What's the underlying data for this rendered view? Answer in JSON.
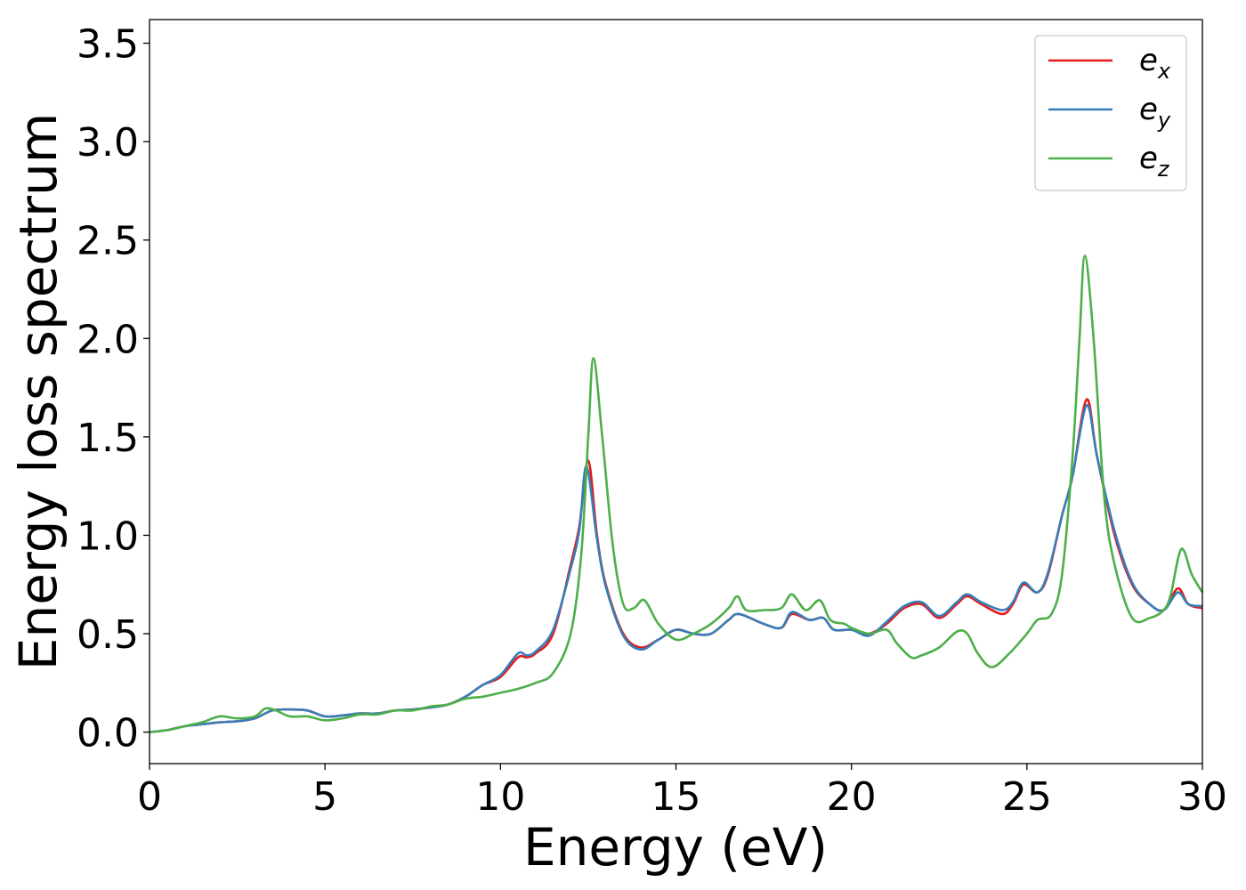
{
  "chart_data": {
    "type": "line",
    "title": "",
    "xlabel": "Energy (eV)",
    "ylabel": "Energy loss spectrum",
    "xlim": [
      0,
      30
    ],
    "ylim": [
      -0.16,
      3.62
    ],
    "xticks": [
      0,
      5,
      10,
      15,
      20,
      25,
      30
    ],
    "xtick_labels": [
      "0",
      "5",
      "10",
      "15",
      "20",
      "25",
      "30"
    ],
    "yticks": [
      0.0,
      0.5,
      1.0,
      1.5,
      2.0,
      2.5,
      3.0,
      3.5
    ],
    "ytick_labels": [
      "0.0",
      "0.5",
      "1.0",
      "1.5",
      "2.0",
      "2.5",
      "3.0",
      "3.5"
    ],
    "grid": false,
    "legend": "top-right",
    "series": [
      {
        "name": "e_x",
        "base": "e",
        "sub": "x",
        "color": "#e41a1c",
        "points": [
          [
            0,
            0
          ],
          [
            0.5,
            0.01
          ],
          [
            1,
            0.03
          ],
          [
            1.5,
            0.04
          ],
          [
            2,
            0.05
          ],
          [
            2.5,
            0.055
          ],
          [
            3,
            0.07
          ],
          [
            3.5,
            0.11
          ],
          [
            4,
            0.115
          ],
          [
            4.5,
            0.11
          ],
          [
            5,
            0.08
          ],
          [
            5.5,
            0.085
          ],
          [
            6,
            0.095
          ],
          [
            6.5,
            0.095
          ],
          [
            7,
            0.11
          ],
          [
            7.5,
            0.115
          ],
          [
            8,
            0.125
          ],
          [
            8.5,
            0.14
          ],
          [
            9,
            0.18
          ],
          [
            9.5,
            0.24
          ],
          [
            10,
            0.28
          ],
          [
            10.5,
            0.38
          ],
          [
            10.75,
            0.38
          ],
          [
            11,
            0.4
          ],
          [
            11.5,
            0.5
          ],
          [
            12,
            0.85
          ],
          [
            12.25,
            1.05
          ],
          [
            12.5,
            1.38
          ],
          [
            12.75,
            1.0
          ],
          [
            13,
            0.75
          ],
          [
            13.5,
            0.5
          ],
          [
            14,
            0.43
          ],
          [
            14.5,
            0.47
          ],
          [
            15,
            0.52
          ],
          [
            15.5,
            0.5
          ],
          [
            16,
            0.5
          ],
          [
            16.5,
            0.57
          ],
          [
            16.8,
            0.6
          ],
          [
            17.5,
            0.55
          ],
          [
            18,
            0.53
          ],
          [
            18.3,
            0.6
          ],
          [
            18.8,
            0.57
          ],
          [
            19.2,
            0.58
          ],
          [
            19.5,
            0.52
          ],
          [
            20,
            0.52
          ],
          [
            20.5,
            0.5
          ],
          [
            21,
            0.55
          ],
          [
            21.5,
            0.63
          ],
          [
            22,
            0.65
          ],
          [
            22.5,
            0.58
          ],
          [
            23,
            0.65
          ],
          [
            23.3,
            0.69
          ],
          [
            23.7,
            0.65
          ],
          [
            24.3,
            0.6
          ],
          [
            24.6,
            0.65
          ],
          [
            24.9,
            0.75
          ],
          [
            25.3,
            0.71
          ],
          [
            25.6,
            0.8
          ],
          [
            26,
            1.1
          ],
          [
            26.3,
            1.3
          ],
          [
            26.7,
            1.69
          ],
          [
            27,
            1.4
          ],
          [
            27.5,
            1.0
          ],
          [
            28,
            0.75
          ],
          [
            28.5,
            0.65
          ],
          [
            28.9,
            0.62
          ],
          [
            29.3,
            0.73
          ],
          [
            29.6,
            0.65
          ],
          [
            30,
            0.63
          ]
        ]
      },
      {
        "name": "e_y",
        "base": "e",
        "sub": "y",
        "color": "#377eb8",
        "points": [
          [
            0,
            0
          ],
          [
            0.5,
            0.01
          ],
          [
            1,
            0.03
          ],
          [
            1.5,
            0.04
          ],
          [
            2,
            0.05
          ],
          [
            2.5,
            0.055
          ],
          [
            3,
            0.07
          ],
          [
            3.5,
            0.11
          ],
          [
            4,
            0.115
          ],
          [
            4.5,
            0.11
          ],
          [
            5,
            0.08
          ],
          [
            5.5,
            0.085
          ],
          [
            6,
            0.095
          ],
          [
            6.5,
            0.095
          ],
          [
            7,
            0.11
          ],
          [
            7.5,
            0.115
          ],
          [
            8,
            0.125
          ],
          [
            8.5,
            0.14
          ],
          [
            9,
            0.18
          ],
          [
            9.5,
            0.24
          ],
          [
            10,
            0.29
          ],
          [
            10.5,
            0.4
          ],
          [
            10.75,
            0.39
          ],
          [
            11,
            0.41
          ],
          [
            11.5,
            0.52
          ],
          [
            12,
            0.83
          ],
          [
            12.25,
            1.03
          ],
          [
            12.45,
            1.35
          ],
          [
            12.75,
            0.98
          ],
          [
            13,
            0.74
          ],
          [
            13.5,
            0.49
          ],
          [
            14,
            0.42
          ],
          [
            14.5,
            0.47
          ],
          [
            15,
            0.52
          ],
          [
            15.5,
            0.5
          ],
          [
            16,
            0.5
          ],
          [
            16.5,
            0.57
          ],
          [
            16.8,
            0.6
          ],
          [
            17.5,
            0.55
          ],
          [
            18,
            0.53
          ],
          [
            18.3,
            0.61
          ],
          [
            18.8,
            0.57
          ],
          [
            19.2,
            0.58
          ],
          [
            19.5,
            0.52
          ],
          [
            20,
            0.52
          ],
          [
            20.5,
            0.49
          ],
          [
            21,
            0.56
          ],
          [
            21.5,
            0.64
          ],
          [
            22,
            0.66
          ],
          [
            22.5,
            0.59
          ],
          [
            23,
            0.66
          ],
          [
            23.3,
            0.7
          ],
          [
            23.7,
            0.66
          ],
          [
            24.3,
            0.62
          ],
          [
            24.6,
            0.66
          ],
          [
            24.9,
            0.76
          ],
          [
            25.3,
            0.71
          ],
          [
            25.6,
            0.81
          ],
          [
            26,
            1.1
          ],
          [
            26.3,
            1.3
          ],
          [
            26.7,
            1.66
          ],
          [
            27,
            1.4
          ],
          [
            27.5,
            1.02
          ],
          [
            28,
            0.76
          ],
          [
            28.5,
            0.65
          ],
          [
            28.9,
            0.62
          ],
          [
            29.3,
            0.71
          ],
          [
            29.6,
            0.65
          ],
          [
            30,
            0.64
          ]
        ]
      },
      {
        "name": "e_z",
        "base": "e",
        "sub": "z",
        "color": "#4daf4a",
        "points": [
          [
            0,
            0
          ],
          [
            0.5,
            0.01
          ],
          [
            1,
            0.03
          ],
          [
            1.5,
            0.05
          ],
          [
            2,
            0.08
          ],
          [
            2.5,
            0.07
          ],
          [
            3,
            0.08
          ],
          [
            3.3,
            0.12
          ],
          [
            3.6,
            0.11
          ],
          [
            4,
            0.08
          ],
          [
            4.5,
            0.08
          ],
          [
            5,
            0.06
          ],
          [
            5.5,
            0.07
          ],
          [
            6,
            0.09
          ],
          [
            6.5,
            0.09
          ],
          [
            7,
            0.11
          ],
          [
            7.5,
            0.11
          ],
          [
            8,
            0.13
          ],
          [
            8.5,
            0.14
          ],
          [
            9,
            0.17
          ],
          [
            9.5,
            0.18
          ],
          [
            10,
            0.2
          ],
          [
            10.5,
            0.22
          ],
          [
            11,
            0.25
          ],
          [
            11.5,
            0.3
          ],
          [
            12,
            0.5
          ],
          [
            12.3,
            0.9
          ],
          [
            12.5,
            1.5
          ],
          [
            12.65,
            1.9
          ],
          [
            12.9,
            1.5
          ],
          [
            13.2,
            0.95
          ],
          [
            13.5,
            0.65
          ],
          [
            13.8,
            0.63
          ],
          [
            14.1,
            0.67
          ],
          [
            14.5,
            0.55
          ],
          [
            15,
            0.47
          ],
          [
            15.5,
            0.5
          ],
          [
            16,
            0.55
          ],
          [
            16.5,
            0.63
          ],
          [
            16.75,
            0.69
          ],
          [
            17,
            0.62
          ],
          [
            17.5,
            0.62
          ],
          [
            18,
            0.63
          ],
          [
            18.3,
            0.7
          ],
          [
            18.7,
            0.62
          ],
          [
            19.1,
            0.67
          ],
          [
            19.4,
            0.57
          ],
          [
            19.8,
            0.55
          ],
          [
            20,
            0.53
          ],
          [
            20.5,
            0.5
          ],
          [
            21,
            0.52
          ],
          [
            21.3,
            0.45
          ],
          [
            21.7,
            0.38
          ],
          [
            22,
            0.39
          ],
          [
            22.5,
            0.43
          ],
          [
            23,
            0.51
          ],
          [
            23.3,
            0.5
          ],
          [
            23.6,
            0.4
          ],
          [
            24,
            0.33
          ],
          [
            24.5,
            0.4
          ],
          [
            25,
            0.5
          ],
          [
            25.3,
            0.57
          ],
          [
            25.7,
            0.6
          ],
          [
            26,
            0.8
          ],
          [
            26.3,
            1.4
          ],
          [
            26.5,
            2.0
          ],
          [
            26.65,
            2.42
          ],
          [
            26.9,
            2.0
          ],
          [
            27.2,
            1.2
          ],
          [
            27.5,
            0.85
          ],
          [
            28,
            0.58
          ],
          [
            28.5,
            0.58
          ],
          [
            28.9,
            0.62
          ],
          [
            29.1,
            0.7
          ],
          [
            29.4,
            0.93
          ],
          [
            29.7,
            0.8
          ],
          [
            30,
            0.71
          ]
        ]
      }
    ]
  }
}
